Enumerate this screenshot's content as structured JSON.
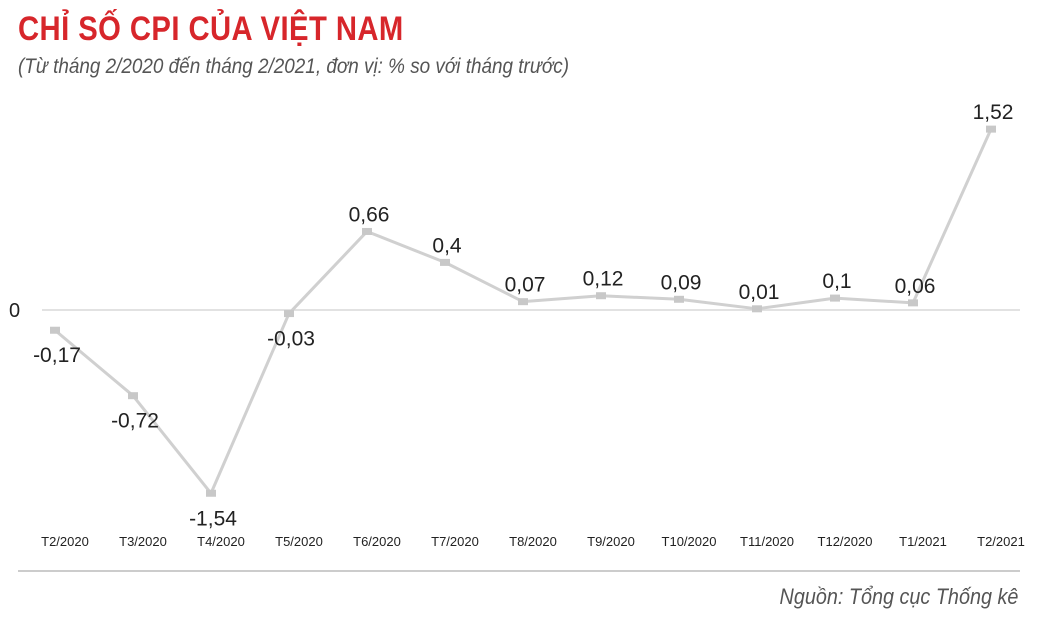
{
  "header": {
    "title": "CHỈ SỐ CPI CỦA VIỆT NAM",
    "subtitle": "(Từ tháng 2/2020 đến tháng 2/2021, đơn vị: % so với tháng trước)"
  },
  "footer": {
    "source": "Nguồn: Tổng cục Thống kê"
  },
  "colors": {
    "title": "#d7262b",
    "line": "#d0d0d0",
    "marker": "#c8c8c8",
    "baseline": "#d9d9d9",
    "text": "#222222"
  },
  "chart_data": {
    "type": "line",
    "title": "CHỈ SỐ CPI CỦA VIỆT NAM",
    "subtitle": "(Từ tháng 2/2020 đến tháng 2/2021, đơn vị: % so với tháng trước)",
    "categories": [
      "T2/2020",
      "T3/2020",
      "T4/2020",
      "T5/2020",
      "T6/2020",
      "T7/2020",
      "T8/2020",
      "T9/2020",
      "T10/2020",
      "T11/2020",
      "T12/2020",
      "T1/2021",
      "T2/2021"
    ],
    "values": [
      -0.17,
      -0.72,
      -1.54,
      -0.03,
      0.66,
      0.4,
      0.07,
      0.12,
      0.09,
      0.01,
      0.1,
      0.06,
      1.52
    ],
    "value_labels": [
      "-0,17",
      "-0,72",
      "-1,54",
      "-0,03",
      "0,66",
      "0,4",
      "0,07",
      "0,12",
      "0,09",
      "0,01",
      "0,1",
      "0,06",
      "1,52"
    ],
    "label_positions": [
      "below",
      "below",
      "below",
      "below",
      "above",
      "above",
      "above",
      "above",
      "above",
      "above",
      "above",
      "above",
      "above"
    ],
    "zero_label": "0",
    "ylim": [
      -1.54,
      1.52
    ],
    "grid": false,
    "baseline": 0
  }
}
